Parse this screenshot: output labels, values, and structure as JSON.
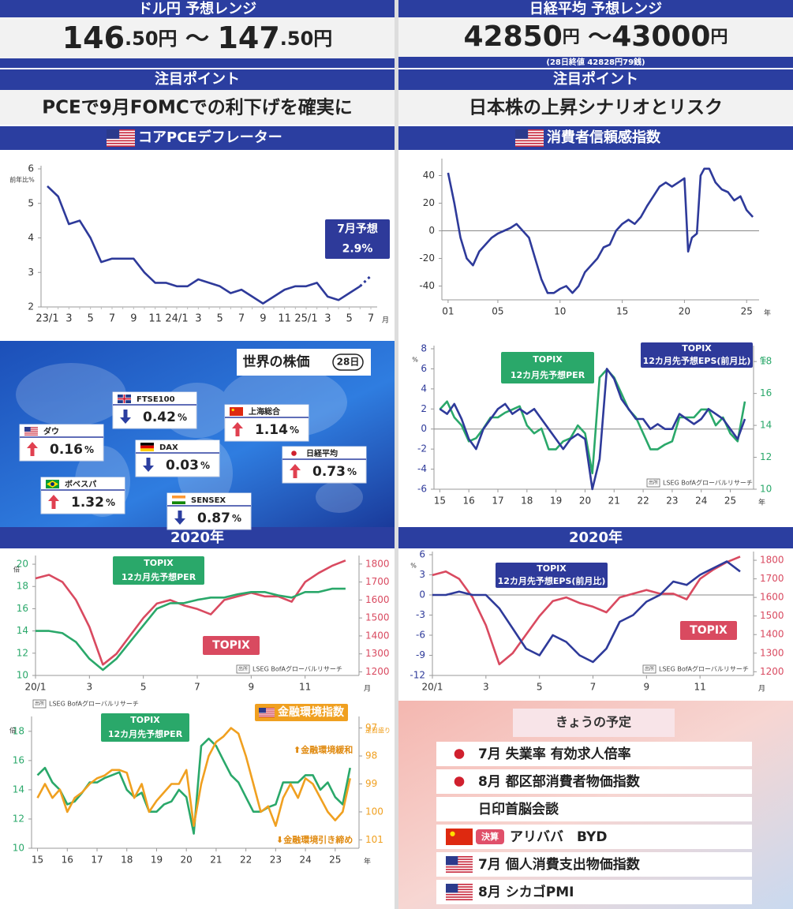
{
  "header_left": {
    "title": "ドル円 予想レンジ",
    "range": [
      "146",
      ".50円",
      " ～ ",
      "147",
      ".50円"
    ],
    "point_label": "注目ポイント",
    "point": "PCEで9月FOMCでの利下げを確実に",
    "chart_label": "コアPCEデフレーター"
  },
  "header_right": {
    "title": "日経平均 予想レンジ",
    "range": [
      "42850",
      "円",
      " ～",
      "43000",
      "円"
    ],
    "note": "(28日終値 42828円79銭)",
    "point_label": "注目ポイント",
    "point": "日本株の上昇シナリオとリスク",
    "chart_label": "消費者信頼感指数"
  },
  "markets": {
    "title": "世界の株価",
    "date": "28日",
    "items": [
      {
        "name": "ダウ",
        "flag": "us",
        "direction": "up",
        "value": "0.16",
        "unit": "%"
      },
      {
        "name": "FTSE100",
        "flag": "uk",
        "direction": "down",
        "value": "0.42",
        "unit": "%"
      },
      {
        "name": "DAX",
        "flag": "de",
        "direction": "down",
        "value": "0.03",
        "unit": "%"
      },
      {
        "name": "上海総合",
        "flag": "cn",
        "direction": "up",
        "value": "1.14",
        "unit": "%"
      },
      {
        "name": "日経平均",
        "flag": "jp",
        "direction": "up",
        "value": "0.73",
        "unit": "%"
      },
      {
        "name": "ボベスパ",
        "flag": "br",
        "direction": "up",
        "value": "1.32",
        "unit": "%"
      },
      {
        "name": "SENSEX",
        "flag": "in",
        "direction": "down",
        "value": "0.87",
        "unit": "%"
      }
    ]
  },
  "year_labels": [
    "2020年",
    "2020年"
  ],
  "schedule": {
    "title": "きょうの予定",
    "items": [
      {
        "flag": "jp",
        "text": "7月 失業率 有効求人倍率"
      },
      {
        "flag": "jp",
        "text": "8月 都区部消費者物価指数"
      },
      {
        "text": "日印首脳会談"
      },
      {
        "flag": "cn",
        "badge": "決算",
        "text": "アリババ　BYD"
      },
      {
        "flag": "us",
        "text": "7月 個人消費支出物価指数"
      },
      {
        "flag": "us",
        "text": "8月 シカゴPMI"
      }
    ]
  },
  "chart_data": [
    {
      "type": "line",
      "y_unit": "前年比%",
      "x_unit": "月",
      "categories": [
        "23/1",
        null,
        "3",
        null,
        "5",
        null,
        "7",
        null,
        "9",
        null,
        "11",
        null,
        "24/1",
        null,
        "3",
        null,
        "5",
        null,
        "7",
        null,
        "9",
        null,
        "11",
        null,
        "25/1",
        null,
        "3",
        null,
        "5",
        null,
        "7"
      ],
      "series": [
        {
          "color": "#2e3a9a",
          "values": [
            5.5,
            5.2,
            4.4,
            4.5,
            4.0,
            3.3,
            3.4,
            3.4,
            3.4,
            3.0,
            2.7,
            2.7,
            2.6,
            2.6,
            2.8,
            2.7,
            2.6,
            2.4,
            2.5,
            2.3,
            2.1,
            2.3,
            2.5,
            2.6,
            2.6,
            2.7,
            2.3,
            2.2,
            2.4,
            2.6,
            null
          ]
        },
        {
          "color": "#2e3a9a",
          "line_style": "dotted",
          "values": [
            null,
            null,
            null,
            null,
            null,
            null,
            null,
            null,
            null,
            null,
            null,
            null,
            null,
            null,
            null,
            null,
            null,
            null,
            null,
            null,
            null,
            null,
            null,
            null,
            null,
            null,
            null,
            null,
            null,
            2.6,
            2.9
          ]
        }
      ],
      "ylim": [
        2,
        6
      ],
      "yticks": [
        2,
        3,
        4,
        5,
        6
      ],
      "annotations": [
        {
          "style": "box",
          "color": "#2e3a9a",
          "texts": [
            "7月予想",
            "2.9%"
          ]
        }
      ]
    },
    {
      "type": "line",
      "x_unit": "年",
      "x": [
        2001,
        2001.5,
        2002,
        2002.5,
        2003,
        2003.5,
        2004,
        2004.5,
        2005,
        2005.5,
        2006,
        2006.5,
        2007,
        2007.5,
        2008,
        2008.5,
        2009,
        2009.5,
        2010,
        2010.5,
        2011,
        2011.5,
        2012,
        2012.5,
        2013,
        2013.5,
        2014,
        2014.5,
        2015,
        2015.5,
        2016,
        2016.5,
        2017,
        2017.5,
        2018,
        2018.5,
        2019,
        2019.5,
        2020,
        2020.3,
        2020.6,
        2021,
        2021.3,
        2021.6,
        2022,
        2022.5,
        2023,
        2023.5,
        2024,
        2024.5,
        2025,
        2025.5
      ],
      "series": [
        {
          "color": "#2e3a9a",
          "values": [
            42,
            20,
            -5,
            -20,
            -25,
            -15,
            -10,
            -5,
            -2,
            0,
            2,
            5,
            0,
            -5,
            -20,
            -35,
            -45,
            -45,
            -42,
            -40,
            -45,
            -40,
            -30,
            -25,
            -20,
            -12,
            -10,
            0,
            5,
            8,
            5,
            10,
            18,
            25,
            32,
            35,
            32,
            35,
            38,
            -15,
            -5,
            -2,
            40,
            45,
            45,
            35,
            30,
            28,
            22,
            25,
            15,
            10
          ]
        }
      ],
      "xlim": [
        2000.5,
        2026
      ],
      "xticks": [
        {
          "value": 2001,
          "label": "01"
        },
        {
          "value": 2005,
          "label": "05"
        },
        {
          "value": 2010,
          "label": "10"
        },
        {
          "value": 2015,
          "label": "15"
        },
        {
          "value": 2020,
          "label": "20"
        },
        {
          "value": 2025,
          "label": "25"
        }
      ],
      "ylim": [
        -50,
        50
      ],
      "yticks": [
        -40,
        -20,
        0,
        20,
        40
      ],
      "zero_line": true
    },
    {
      "type": "line",
      "y_unit": "%",
      "y2_unit": "倍",
      "x_unit": "年",
      "source_label": "出所",
      "source": "LSEG BofAグローバルリサーチ",
      "x": [
        2015,
        2015.25,
        2015.5,
        2015.75,
        2016,
        2016.25,
        2016.5,
        2016.75,
        2017,
        2017.25,
        2017.5,
        2017.75,
        2018,
        2018.25,
        2018.5,
        2018.75,
        2019,
        2019.25,
        2019.5,
        2019.75,
        2020,
        2020.25,
        2020.5,
        2020.75,
        2021,
        2021.25,
        2021.5,
        2021.75,
        2022,
        2022.25,
        2022.5,
        2022.75,
        2023,
        2023.25,
        2023.5,
        2023.75,
        2024,
        2024.25,
        2024.5,
        2024.75,
        2025,
        2025.25,
        2025.5
      ],
      "series": [
        {
          "color": "#2aa86a",
          "axis": "y2",
          "values": [
            15,
            15.5,
            14.5,
            14,
            13,
            13.2,
            13.8,
            14.5,
            14.5,
            14.8,
            15,
            15.2,
            14,
            13.5,
            13.8,
            12.5,
            12.5,
            13,
            13.2,
            14,
            13.5,
            11,
            17,
            17.5,
            17,
            16,
            15,
            14.5,
            13.5,
            12.5,
            12.5,
            12.8,
            13,
            14.5,
            14.5,
            14.5,
            15,
            15,
            14,
            14.5,
            13.5,
            13,
            15.5
          ]
        },
        {
          "color": "#2e3a9a",
          "values": [
            2,
            1.5,
            2.5,
            1,
            -1,
            -2,
            0,
            1,
            2,
            2.5,
            1.5,
            2,
            1.5,
            2,
            1,
            0,
            -1,
            -2,
            -1,
            -0.5,
            -1,
            -6,
            -3,
            6,
            5,
            3,
            2,
            1,
            1,
            0,
            0.5,
            0,
            0,
            1.5,
            1,
            0.5,
            1,
            2,
            1.5,
            1,
            0,
            -1,
            1
          ]
        }
      ],
      "xlim": [
        2014.8,
        2025.8
      ],
      "xticks": [
        {
          "value": 2015,
          "label": "15"
        },
        {
          "value": 2016,
          "label": "16"
        },
        {
          "value": 2017,
          "label": "17"
        },
        {
          "value": 2018,
          "label": "18"
        },
        {
          "value": 2019,
          "label": "19"
        },
        {
          "value": 2020,
          "label": "20"
        },
        {
          "value": 2021,
          "label": "21"
        },
        {
          "value": 2022,
          "label": "22"
        },
        {
          "value": 2023,
          "label": "23"
        },
        {
          "value": 2024,
          "label": "24"
        },
        {
          "value": 2025,
          "label": "25"
        }
      ],
      "ylim": [
        -6,
        8
      ],
      "yticks": [
        -6,
        -4,
        -2,
        0,
        2,
        4,
        6,
        8
      ],
      "y2lim": [
        10,
        18.8
      ],
      "y2ticks": [
        10,
        12,
        14,
        16,
        18
      ],
      "zero_line": true,
      "annotations": [
        {
          "style": "box",
          "color": "#2aa86a",
          "texts": [
            "TOPIX",
            "12カ月先予想PER"
          ]
        },
        {
          "style": "box",
          "color": "#2e3a9a",
          "texts": [
            "TOPIX",
            "12カ月先予想EPS(前月比)"
          ]
        }
      ]
    },
    {
      "type": "line",
      "y_unit": "倍",
      "x_unit": "月",
      "source_label": "出所",
      "source": "LSEG BofAグローバルリサーチ",
      "x": [
        1,
        1.5,
        2,
        2.5,
        3,
        3.5,
        4,
        4.5,
        5,
        5.5,
        6,
        6.5,
        7,
        7.5,
        8,
        8.5,
        9,
        9.5,
        10,
        10.5,
        11,
        11.5,
        12,
        12.5
      ],
      "series": [
        {
          "color": "#d94a60",
          "axis": "y2",
          "values": [
            1720,
            1740,
            1700,
            1600,
            1450,
            1240,
            1300,
            1400,
            1500,
            1580,
            1600,
            1570,
            1550,
            1520,
            1600,
            1620,
            1640,
            1620,
            1620,
            1590,
            1700,
            1750,
            1790,
            1820
          ]
        },
        {
          "color": "#2aa86a",
          "values": [
            14,
            14,
            13.8,
            13,
            11.5,
            10.5,
            11.5,
            13,
            14.5,
            16,
            16.5,
            16.5,
            16.8,
            17,
            17,
            17.3,
            17.5,
            17.5,
            17.2,
            17,
            17.5,
            17.5,
            17.8,
            17.8
          ]
        }
      ],
      "xlim": [
        1,
        13
      ],
      "xticks": [
        {
          "value": 1,
          "label": "20/1"
        },
        3,
        5,
        7,
        9,
        11
      ],
      "ylim": [
        10,
        20.5
      ],
      "yticks": [
        10,
        12,
        14,
        16,
        18,
        20
      ],
      "y2lim": [
        1180,
        1830
      ],
      "y2ticks": [
        1200,
        1300,
        1400,
        1500,
        1600,
        1700,
        1800
      ],
      "annotations": [
        {
          "style": "box",
          "color": "#2aa86a",
          "texts": [
            "TOPIX",
            "12カ月先予想PER"
          ]
        },
        {
          "style": "box",
          "color": "#d94a60",
          "texts": [
            "TOPIX"
          ]
        }
      ]
    },
    {
      "type": "line",
      "y_unit": "%",
      "x_unit": "月",
      "source_label": "出所",
      "source": "LSEG BofAグローバルリサーチ",
      "x": [
        1,
        1.5,
        2,
        2.5,
        3,
        3.5,
        4,
        4.5,
        5,
        5.5,
        6,
        6.5,
        7,
        7.5,
        8,
        8.5,
        9,
        9.5,
        10,
        10.5,
        11,
        11.5,
        12,
        12.5
      ],
      "series": [
        {
          "color": "#d94a60",
          "axis": "y2",
          "values": [
            1720,
            1740,
            1700,
            1600,
            1450,
            1240,
            1300,
            1400,
            1500,
            1580,
            1600,
            1570,
            1550,
            1520,
            1600,
            1620,
            1640,
            1620,
            1620,
            1590,
            1700,
            1750,
            1790,
            1820
          ]
        },
        {
          "color": "#2e3a9a",
          "values": [
            0,
            0,
            0.5,
            0,
            0,
            -2,
            -5,
            -8,
            -9,
            -6,
            -7,
            -9,
            -10,
            -8,
            -4,
            -3,
            -1,
            0,
            2,
            1.5,
            3,
            4,
            5,
            3.5
          ]
        }
      ],
      "xlim": [
        1,
        13
      ],
      "xticks": [
        {
          "value": 1,
          "label": "20/1"
        },
        3,
        5,
        7,
        9,
        11
      ],
      "ylim": [
        -12,
        6
      ],
      "yticks": [
        -12,
        -9,
        -6,
        -3,
        0,
        3,
        6
      ],
      "y2lim": [
        1180,
        1830
      ],
      "y2ticks": [
        1200,
        1300,
        1400,
        1500,
        1600,
        1700,
        1800
      ],
      "zero_line": true,
      "annotations": [
        {
          "style": "box",
          "color": "#2e3a9a",
          "texts": [
            "TOPIX",
            "12カ月先予想EPS(前月比)"
          ]
        },
        {
          "style": "box",
          "color": "#d94a60",
          "texts": [
            "TOPIX"
          ]
        }
      ]
    },
    {
      "type": "line",
      "y_unit": "倍",
      "y2_unit": "逆目盛り",
      "x_unit": "年",
      "source_label": "出所",
      "source": "LSEG BofAグローバルリサーチ",
      "x": [
        2015,
        2015.25,
        2015.5,
        2015.75,
        2016,
        2016.25,
        2016.5,
        2016.75,
        2017,
        2017.25,
        2017.5,
        2017.75,
        2018,
        2018.25,
        2018.5,
        2018.75,
        2019,
        2019.25,
        2019.5,
        2019.75,
        2020,
        2020.25,
        2020.5,
        2020.75,
        2021,
        2021.25,
        2021.5,
        2021.75,
        2022,
        2022.25,
        2022.5,
        2022.75,
        2023,
        2023.25,
        2023.5,
        2023.75,
        2024,
        2024.25,
        2024.5,
        2024.75,
        2025,
        2025.25,
        2025.5
      ],
      "series": [
        {
          "color": "#2aa86a",
          "values": [
            15,
            15.5,
            14.5,
            14,
            13,
            13.2,
            13.8,
            14.5,
            14.5,
            14.8,
            15,
            15.2,
            14,
            13.5,
            13.8,
            12.5,
            12.5,
            13,
            13.2,
            14,
            13.5,
            11,
            17,
            17.5,
            17,
            16,
            15,
            14.5,
            13.5,
            12.5,
            12.5,
            12.8,
            13,
            14.5,
            14.5,
            14.5,
            15,
            15,
            14,
            14.5,
            13.5,
            13,
            15.5
          ]
        },
        {
          "color": "#f0a020",
          "axis": "y2",
          "values": [
            99.5,
            99,
            99.5,
            99.2,
            100,
            99.5,
            99.3,
            99,
            98.8,
            98.7,
            98.5,
            98.5,
            98.6,
            99.5,
            99,
            100,
            99.6,
            99.3,
            99,
            99,
            98.5,
            100.5,
            99,
            98,
            97.5,
            97.3,
            97,
            97.2,
            98,
            99,
            100,
            99.8,
            100.5,
            99.5,
            99,
            99.5,
            98.8,
            99,
            99.5,
            100,
            100.3,
            100,
            98.8
          ]
        }
      ],
      "xlim": [
        2014.8,
        2025.8
      ],
      "xticks": [
        {
          "value": 2015,
          "label": "15"
        },
        {
          "value": 2016,
          "label": "16"
        },
        {
          "value": 2017,
          "label": "17"
        },
        {
          "value": 2018,
          "label": "18"
        },
        {
          "value": 2019,
          "label": "19"
        },
        {
          "value": 2020,
          "label": "20"
        },
        {
          "value": 2021,
          "label": "21"
        },
        {
          "value": 2022,
          "label": "22"
        },
        {
          "value": 2023,
          "label": "23"
        },
        {
          "value": 2024,
          "label": "24"
        },
        {
          "value": 2025,
          "label": "25"
        }
      ],
      "ylim": [
        10,
        18.8
      ],
      "yticks": [
        10,
        12,
        14,
        16,
        18
      ],
      "y2lim": [
        101.3,
        96.7
      ],
      "y2ticks": [
        97,
        98,
        99,
        100,
        101
      ],
      "annotations": [
        {
          "style": "box",
          "color": "#2aa86a",
          "texts": [
            "TOPIX",
            "12カ月先予想PER"
          ]
        },
        {
          "style": "box",
          "color": "#f0a020",
          "flag": "us",
          "texts": [
            "金融環境指数"
          ]
        },
        {
          "style": "text",
          "color": "#e08a10",
          "texts": [
            "⬆金融環境緩和"
          ]
        },
        {
          "style": "text",
          "color": "#e08a10",
          "texts": [
            "⬇金融環境引き締め"
          ]
        }
      ]
    }
  ]
}
